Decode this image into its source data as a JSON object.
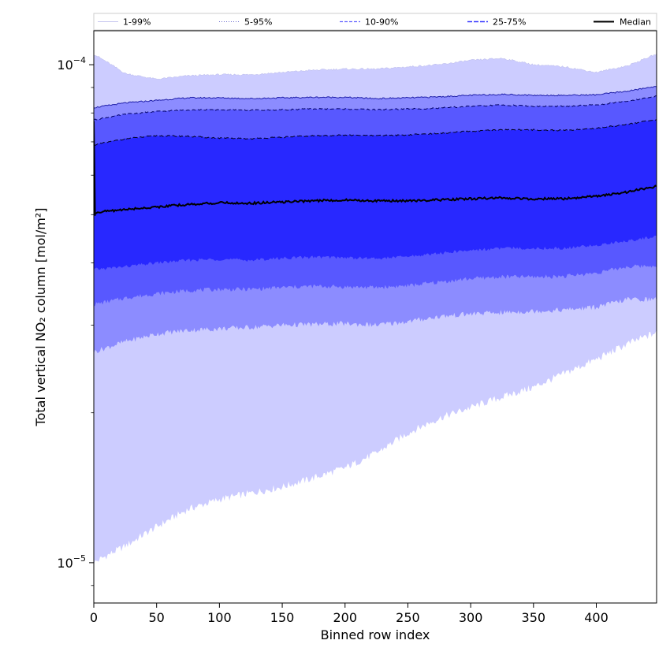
{
  "chart_data": {
    "type": "area",
    "xlabel": "Binned row index",
    "ylabel": "Total vertical NO₂ column [mol/m²]",
    "y_scale": "log",
    "xlim": [
      0,
      448
    ],
    "ylim": [
      8.3e-06,
      0.000117
    ],
    "x_ticks": [
      0,
      50,
      100,
      150,
      200,
      250,
      300,
      350,
      400
    ],
    "x_tick_labels": [
      "0",
      "50",
      "100",
      "150",
      "200",
      "250",
      "300",
      "350",
      "400"
    ],
    "y_major_ticks": [
      1e-05,
      0.0001
    ],
    "y_major_tick_labels": [
      {
        "base": "10",
        "exponent": "−5"
      },
      {
        "base": "10",
        "exponent": "−4"
      }
    ],
    "y_minor_ticks": [
      9e-06,
      2e-05,
      3e-05,
      4e-05,
      5e-05,
      6e-05,
      7e-05,
      8e-05,
      9e-05
    ],
    "grid": false,
    "legend_position": "top",
    "x": [
      0,
      25,
      50,
      75,
      100,
      125,
      150,
      175,
      200,
      225,
      250,
      275,
      300,
      325,
      350,
      375,
      400,
      425,
      448
    ],
    "bands": [
      {
        "name": "1-99%",
        "color": "#ccccff",
        "line_color": "#c0c0ee",
        "dash": "none",
        "lower": [
          1e-05,
          1.08e-05,
          1.18e-05,
          1.28e-05,
          1.34e-05,
          1.38e-05,
          1.42e-05,
          1.48e-05,
          1.55e-05,
          1.66e-05,
          1.82e-05,
          1.95e-05,
          2.05e-05,
          2.15e-05,
          2.25e-05,
          2.4e-05,
          2.56e-05,
          2.75e-05,
          2.9e-05
        ],
        "upper": [
          0.000105,
          9.6e-05,
          9.35e-05,
          9.5e-05,
          9.55e-05,
          9.55e-05,
          9.65e-05,
          9.75e-05,
          9.8e-05,
          9.8e-05,
          9.9e-05,
          0.0001,
          0.000102,
          0.000103,
          0.0001,
          9.9e-05,
          9.65e-05,
          9.95e-05,
          0.000105
        ]
      },
      {
        "name": "5-95%",
        "color": "#8c8cff",
        "line_color": "#2020aa",
        "dash": "none",
        "lower": [
          2.65e-05,
          2.78e-05,
          2.88e-05,
          2.93e-05,
          2.95e-05,
          2.97e-05,
          3e-05,
          3.01e-05,
          3.02e-05,
          3e-05,
          3.05e-05,
          3.12e-05,
          3.16e-05,
          3.18e-05,
          3.2e-05,
          3.22e-05,
          3.26e-05,
          3.38e-05,
          3.38e-05
        ],
        "upper": [
          8.2e-05,
          8.38e-05,
          8.48e-05,
          8.58e-05,
          8.58e-05,
          8.55e-05,
          8.58e-05,
          8.6e-05,
          8.6e-05,
          8.55e-05,
          8.58e-05,
          8.62e-05,
          8.68e-05,
          8.72e-05,
          8.68e-05,
          8.68e-05,
          8.7e-05,
          8.85e-05,
          9.05e-05
        ]
      },
      {
        "name": "10-90%",
        "color": "#5858ff",
        "line_color": "#000066",
        "dash": "5,3",
        "lower": [
          3.3e-05,
          3.4e-05,
          3.47e-05,
          3.52e-05,
          3.54e-05,
          3.54e-05,
          3.57e-05,
          3.59e-05,
          3.58e-05,
          3.57e-05,
          3.6e-05,
          3.66e-05,
          3.72e-05,
          3.75e-05,
          3.75e-05,
          3.76e-05,
          3.82e-05,
          3.93e-05,
          3.95e-05
        ],
        "upper": [
          7.75e-05,
          7.95e-05,
          8.05e-05,
          8.12e-05,
          8.12e-05,
          8.1e-05,
          8.12e-05,
          8.15e-05,
          8.15e-05,
          8.12e-05,
          8.15e-05,
          8.18e-05,
          8.25e-05,
          8.3e-05,
          8.25e-05,
          8.25e-05,
          8.3e-05,
          8.45e-05,
          8.65e-05
        ]
      },
      {
        "name": "25-75%",
        "color": "#2828ff",
        "line_color": "#000022",
        "dash": "6,3",
        "lower": [
          3.88e-05,
          3.93e-05,
          4e-05,
          4.05e-05,
          4.07e-05,
          4.05e-05,
          4.09e-05,
          4.11e-05,
          4.1e-05,
          4.08e-05,
          4.12e-05,
          4.18e-05,
          4.24e-05,
          4.28e-05,
          4.28e-05,
          4.28e-05,
          4.34e-05,
          4.43e-05,
          4.52e-05
        ],
        "upper": [
          6.9e-05,
          7.1e-05,
          7.2e-05,
          7.18e-05,
          7.12e-05,
          7.1e-05,
          7.15e-05,
          7.2e-05,
          7.22e-05,
          7.2e-05,
          7.23e-05,
          7.28e-05,
          7.35e-05,
          7.4e-05,
          7.4e-05,
          7.38e-05,
          7.45e-05,
          7.6e-05,
          7.75e-05
        ]
      }
    ],
    "series": [
      {
        "name": "Median",
        "color": "#000000",
        "values": [
          5.05e-05,
          5.12e-05,
          5.18e-05,
          5.24e-05,
          5.28e-05,
          5.27e-05,
          5.3e-05,
          5.33e-05,
          5.35e-05,
          5.33e-05,
          5.33e-05,
          5.35e-05,
          5.38e-05,
          5.4e-05,
          5.38e-05,
          5.38e-05,
          5.44e-05,
          5.55e-05,
          5.7e-05
        ]
      }
    ],
    "median_start_spike": 7.7e-05,
    "legend": [
      {
        "label": "1-99%",
        "color": "#c8c8f0",
        "dash": "none",
        "width": 1
      },
      {
        "label": "5-95%",
        "color": "#7070d0",
        "dash": "1,2",
        "width": 1
      },
      {
        "label": "10-90%",
        "color": "#6464ff",
        "dash": "4,2",
        "width": 1.3
      },
      {
        "label": "25-75%",
        "color": "#3a3aff",
        "dash": "6,2",
        "width": 1.5
      },
      {
        "label": "Median",
        "color": "#000000",
        "dash": "none",
        "width": 2
      }
    ]
  }
}
